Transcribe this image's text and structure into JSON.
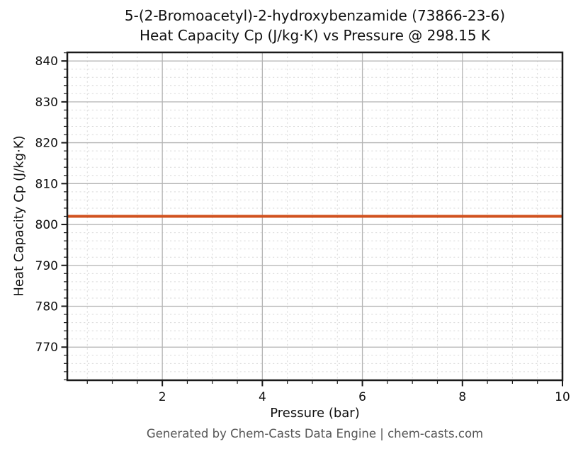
{
  "page": {
    "footer": "Generated by Chem-Casts Data Engine | chem-casts.com"
  },
  "chart_data": {
    "type": "line",
    "title": "5-(2-Bromoacetyl)-2-hydroxybenzamide (73866-23-6)\nHeat Capacity Cp (J/kg·K) vs Pressure @ 298.15 K",
    "title_lines": [
      "5-(2-Bromoacetyl)-2-hydroxybenzamide (73866-23-6)",
      "Heat Capacity Cp (J/kg·K) vs Pressure @ 298.15 K"
    ],
    "compound": "5-(2-Bromoacetyl)-2-hydroxybenzamide",
    "cas_number": "73866-23-6",
    "temperature": "298.15 K",
    "xlabel": "Pressure (bar)",
    "ylabel": "Heat Capacity Cp (J/kg·K)",
    "xlim": [
      0.1,
      10
    ],
    "ylim": [
      761.9,
      842.1
    ],
    "x_major_ticks": [
      2,
      4,
      6,
      8,
      10
    ],
    "x_minor_step": 0.5,
    "y_major_ticks": [
      770,
      780,
      790,
      800,
      810,
      820,
      830,
      840
    ],
    "y_minor_step": 2,
    "grid": {
      "major": true,
      "minor": true,
      "minor_style": "dashed"
    },
    "legend": "none",
    "series": [
      {
        "name": "Heat Capacity Cp",
        "x": [
          0.1,
          1,
          2,
          3,
          4,
          5,
          6,
          7,
          8,
          9,
          10
        ],
        "y": [
          802,
          802,
          802,
          802,
          802,
          802,
          802,
          802,
          802,
          802,
          802
        ],
        "color": "#d1521f",
        "line_width": 4
      }
    ],
    "colors": {
      "line": "#d1521f",
      "major_grid": "#b3b3b3",
      "minor_grid": "#d9d9d9",
      "spine": "#1a1a1a",
      "text": "#111111",
      "footer_text": "#555555",
      "background": "#ffffff"
    }
  }
}
